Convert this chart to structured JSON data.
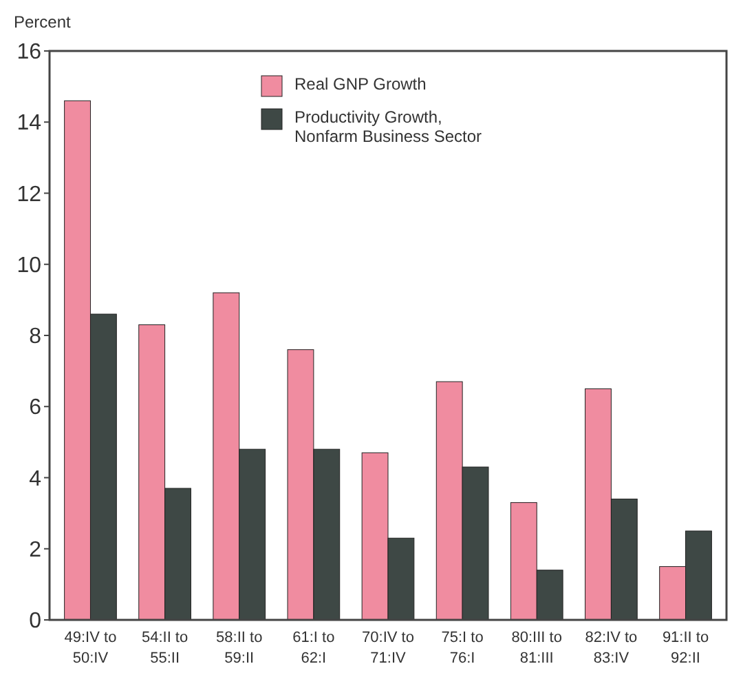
{
  "chart_data": {
    "type": "bar",
    "ylabel": "Percent",
    "categories": [
      "49:IV to 50:IV",
      "54:II to 55:II",
      "58:II to 59:II",
      "61:I to 62:I",
      "70:IV to 71:IV",
      "75:I to 76:I",
      "80:III to 81:III",
      "82:IV to 83:IV",
      "91:II to 92:II"
    ],
    "series": [
      {
        "name": "Real GNP Growth",
        "color": "#f08ca0",
        "values": [
          14.6,
          8.3,
          9.2,
          7.6,
          4.7,
          6.7,
          3.3,
          6.5,
          1.5
        ]
      },
      {
        "name": "Productivity Growth, Nonfarm Business Sector",
        "color": "#3e4845",
        "values": [
          8.6,
          3.7,
          4.8,
          4.8,
          2.3,
          4.3,
          1.4,
          3.4,
          2.5
        ]
      }
    ],
    "ylim": [
      0,
      16
    ],
    "yticks": [
      0,
      2,
      4,
      6,
      8,
      10,
      12,
      14,
      16
    ],
    "grid": false,
    "legend": "top"
  }
}
